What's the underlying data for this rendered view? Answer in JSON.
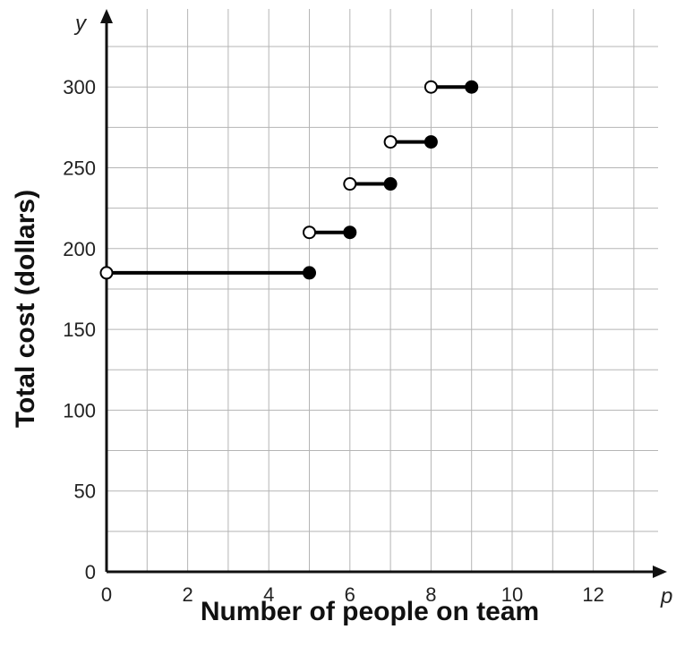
{
  "chart_data": {
    "type": "step",
    "xlabel": "Number of people on team",
    "ylabel": "Total cost (dollars)",
    "x_var": "p",
    "y_var": "y",
    "xlim": [
      0,
      13.5
    ],
    "ylim": [
      0,
      335
    ],
    "x_ticks": [
      0,
      2,
      4,
      6,
      8,
      10,
      12
    ],
    "y_ticks": [
      0,
      50,
      100,
      150,
      200,
      250,
      300
    ],
    "grid": true,
    "segments": [
      {
        "x_start": 0,
        "x_end": 5,
        "y": 185,
        "start": "open",
        "end": "closed"
      },
      {
        "x_start": 5,
        "x_end": 6,
        "y": 210,
        "start": "open",
        "end": "closed"
      },
      {
        "x_start": 6,
        "x_end": 7,
        "y": 240,
        "start": "open",
        "end": "closed"
      },
      {
        "x_start": 7,
        "x_end": 8,
        "y": 266,
        "start": "open",
        "end": "closed"
      },
      {
        "x_start": 8,
        "x_end": 9,
        "y": 300,
        "start": "open",
        "end": "closed"
      }
    ]
  }
}
